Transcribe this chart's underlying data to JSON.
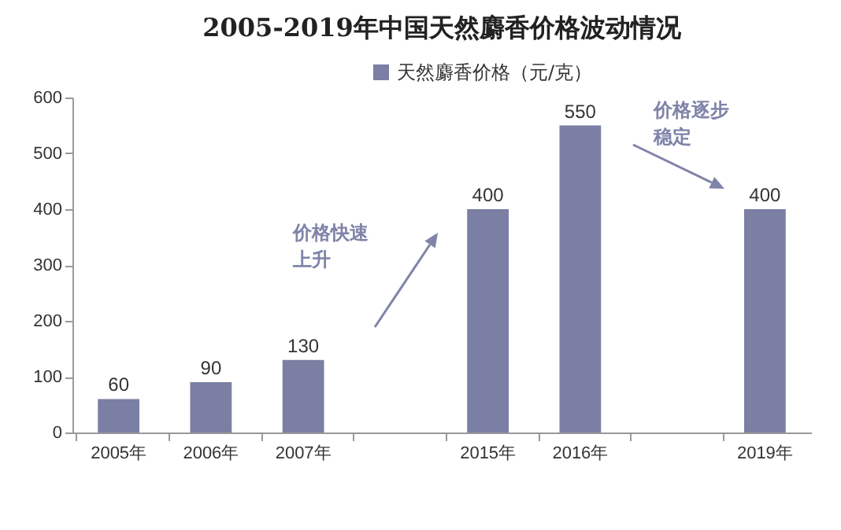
{
  "chart_data": {
    "type": "bar",
    "title": "2005-2019年中国天然麝香价格波动情况",
    "categories": [
      "2005年",
      "2006年",
      "2007年",
      null,
      "2015年",
      "2016年",
      null,
      "2019年"
    ],
    "series": [
      {
        "name": "天然麝香价格（元/克）",
        "color": "#7a7fa3",
        "values": [
          60,
          90,
          130,
          null,
          400,
          550,
          null,
          400
        ]
      }
    ],
    "ylim": [
      0,
      600
    ],
    "yticks": [
      0,
      100,
      200,
      300,
      400,
      500,
      600
    ],
    "grid": false,
    "legend": "top",
    "data_labels": true,
    "annotations": [
      "价格快速上升",
      "价格逐步稳定"
    ]
  }
}
